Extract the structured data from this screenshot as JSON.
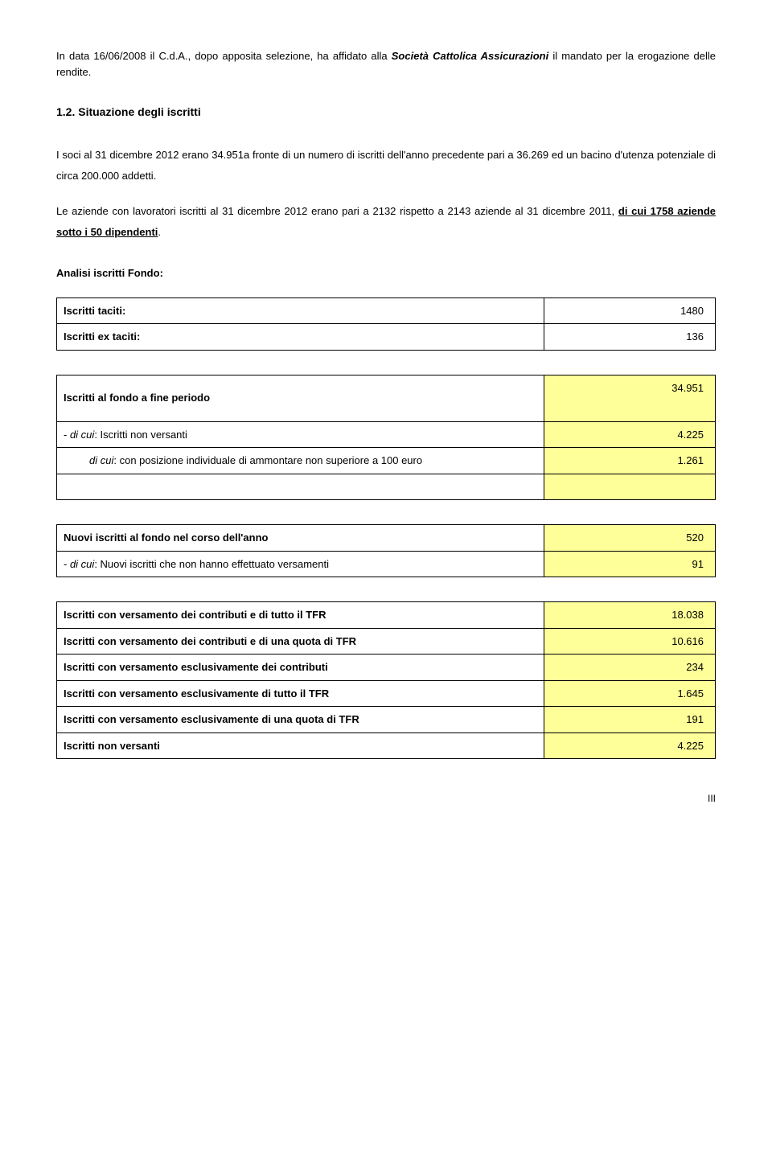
{
  "intro": {
    "p1_a": "In data 16/06/2008 il C.d.A., dopo apposita selezione, ha affidato alla ",
    "p1_b": "Società Cattolica Assicurazioni",
    "p1_c": " il mandato per la erogazione delle rendite.",
    "heading": "1.2.    Situazione degli iscritti",
    "p2": "I soci al 31 dicembre 2012 erano 34.951a fronte di un numero di iscritti dell'anno precedente pari a  36.269 ed un bacino d'utenza potenziale di circa  200.000 addetti.",
    "p3_a": "Le aziende con lavoratori iscritti al 31 dicembre  2012 erano pari a 2132 rispetto a 2143 aziende al 31 dicembre 2011, ",
    "p3_b": "di cui 1758 aziende sotto i 50 dipendenti",
    "p3_c": ".",
    "analisi": "Analisi iscritti Fondo:"
  },
  "t1": {
    "r0": {
      "label": "Iscritti taciti:",
      "value": "1480"
    },
    "r1": {
      "label": "Iscritti ex taciti:",
      "value": "136"
    }
  },
  "t2": {
    "r0": {
      "label": "Iscritti al fondo a fine periodo",
      "value": "34.951"
    },
    "r1": {
      "label_a": "- ",
      "label_b": "di cui",
      "label_c": ": Iscritti non versanti",
      "value": "4.225"
    },
    "r2": {
      "label_a": "di cui",
      "label_b": ": con posizione individuale di ammontare non superiore a 100 euro",
      "value": "1.261"
    }
  },
  "t3": {
    "r0": {
      "label": "Nuovi iscritti al fondo nel corso dell'anno",
      "value": "520"
    },
    "r1": {
      "label_a": "- ",
      "label_b": "di cui",
      "label_c": ": Nuovi iscritti che non hanno effettuato versamenti",
      "value": "91"
    }
  },
  "t4": {
    "r0": {
      "label": "Iscritti con versamento dei contributi e di tutto il TFR",
      "value": "18.038"
    },
    "r1": {
      "label": "Iscritti con versamento dei contributi e di una quota di TFR",
      "value": "10.616"
    },
    "r2": {
      "label": "Iscritti con versamento esclusivamente dei contributi",
      "value": "234"
    },
    "r3": {
      "label": "Iscritti con versamento esclusivamente di tutto il TFR",
      "value": "1.645"
    },
    "r4": {
      "label": "Iscritti con versamento esclusivamente di una quota di TFR",
      "value": "191"
    },
    "r5": {
      "label": "Iscritti non versanti",
      "value": "4.225"
    }
  },
  "page": "III"
}
